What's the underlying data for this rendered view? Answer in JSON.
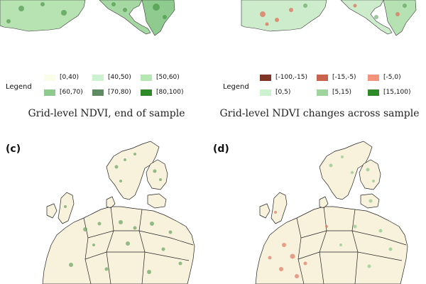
{
  "panels": {
    "top_left": {
      "legend_title": "Legend",
      "legend_items": [
        {
          "label": "[0,40)",
          "color": "#fafde8"
        },
        {
          "label": "[40,50)",
          "color": "#cdf2cf"
        },
        {
          "label": "[50,60)",
          "color": "#b6e7b3"
        },
        {
          "label": "[60,70)",
          "color": "#8fcb8e"
        },
        {
          "label": "[70,80)",
          "color": "#5f8b62"
        },
        {
          "label": "[80,100)",
          "color": "#2f8a2a"
        }
      ],
      "caption": "Grid-level NDVI, end of sample"
    },
    "top_right": {
      "legend_title": "Legend",
      "legend_items": [
        {
          "label": "[-100,-15)",
          "color": "#7e3526"
        },
        {
          "label": "[-15,-5)",
          "color": "#c9634d"
        },
        {
          "label": "[-5,0)",
          "color": "#f2937a"
        },
        {
          "label": "[0,5)",
          "color": "#cdf2cf"
        },
        {
          "label": "[5,15)",
          "color": "#9fd49d"
        },
        {
          "label": "[15,100)",
          "color": "#2f8a2a"
        }
      ],
      "caption": "Grid-level NDVI changes across sample"
    },
    "bottom_left": {
      "label": "(c)"
    },
    "bottom_right": {
      "label": "(d)"
    }
  },
  "colors": {
    "land": "#f8f1dc",
    "border": "#222222"
  }
}
